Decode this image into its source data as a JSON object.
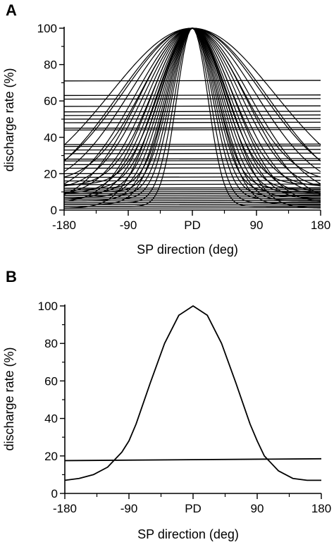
{
  "chart_data": [
    {
      "panel": "A",
      "type": "line",
      "xlabel": "SP direction (deg)",
      "ylabel": "discharge rate (%)",
      "xlim": [
        -180,
        180
      ],
      "ylim": [
        0,
        100
      ],
      "x_ticks": [
        -180,
        -90,
        0,
        90,
        180
      ],
      "x_tick_labels": [
        "-180",
        "-90",
        "PD",
        "90",
        "180"
      ],
      "y_ticks": [
        0,
        20,
        40,
        60,
        80,
        100
      ],
      "y_tick_labels": [
        "0",
        "20",
        "40",
        "60",
        "80",
        "100"
      ],
      "tuned_curve_widths_deg": [
        22,
        25,
        28,
        30,
        32,
        34,
        36,
        38,
        40,
        42,
        44,
        46,
        48,
        50,
        52,
        55,
        58,
        62,
        66,
        70,
        75,
        80,
        88,
        96,
        105,
        115
      ],
      "tuned_curve_baselines": [
        2,
        4,
        6,
        8,
        10,
        12,
        3,
        5,
        7,
        9,
        11,
        14,
        1,
        6,
        9,
        13,
        4,
        8,
        11,
        15,
        3,
        7,
        10,
        12,
        5,
        9
      ],
      "untuned_levels": [
        71,
        63,
        61,
        57,
        54,
        52,
        50,
        48,
        45,
        44,
        36,
        35,
        33,
        31,
        28,
        27,
        25,
        23,
        20,
        18,
        16,
        14,
        12,
        11,
        10,
        9,
        8,
        7,
        6,
        5,
        4,
        3,
        2,
        1
      ],
      "grid": false
    },
    {
      "panel": "B",
      "type": "line",
      "xlabel": "SP direction (deg)",
      "ylabel": "discharge rate (%)",
      "xlim": [
        -180,
        180
      ],
      "ylim": [
        0,
        100
      ],
      "x_ticks": [
        -180,
        -90,
        0,
        90,
        180
      ],
      "x_tick_labels": [
        "-180",
        "-90",
        "PD",
        "90",
        "180"
      ],
      "y_ticks": [
        0,
        20,
        40,
        60,
        80,
        100
      ],
      "y_tick_labels": [
        "0",
        "20",
        "40",
        "60",
        "80",
        "100"
      ],
      "series": [
        {
          "x": [
            -180,
            -160,
            -140,
            -120,
            -100,
            -90,
            -80,
            -60,
            -40,
            -20,
            0,
            20,
            40,
            60,
            80,
            90,
            100,
            120,
            140,
            160,
            180
          ],
          "y": [
            7,
            8,
            10,
            14,
            22,
            28,
            37,
            59,
            80,
            95,
            100,
            95,
            80,
            59,
            37,
            28,
            20,
            12,
            8,
            7,
            7
          ]
        },
        {
          "x": [
            -180,
            180
          ],
          "y": [
            17.5,
            18.5
          ]
        }
      ],
      "grid": false
    }
  ]
}
